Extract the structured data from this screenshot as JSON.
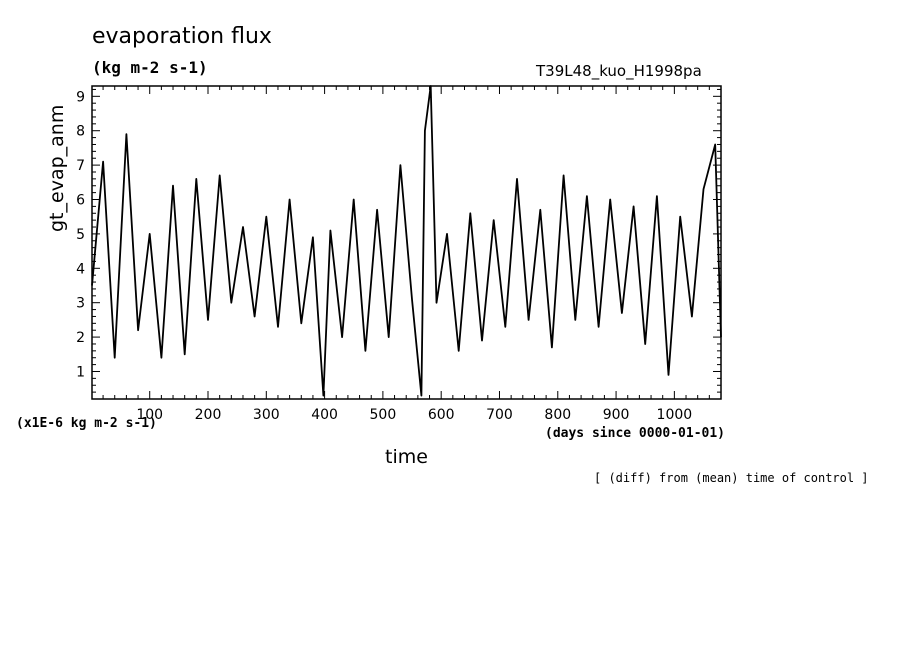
{
  "figure": {
    "title": "evaporation flux",
    "units": "(kg m-2 s-1)",
    "run_label": "T39L48_kuo_H1998pa",
    "scale_note": "(x1E-6 kg m-2 s-1)",
    "x_unit_note": "(days since 0000-01-01)",
    "footnote": "[ (diff) from (mean) time of control ]"
  },
  "chart_data": {
    "type": "line",
    "title": "evaporation flux",
    "xlabel": "time",
    "ylabel": "gt_evap_anm",
    "xlim": [
      1,
      1080
    ],
    "ylim": [
      0.2,
      9.3
    ],
    "xticks": [
      100,
      200,
      300,
      400,
      500,
      600,
      700,
      800,
      900,
      1000
    ],
    "yticks": [
      1,
      2,
      3,
      4,
      5,
      6,
      7,
      8,
      9
    ],
    "grid": false,
    "series": [
      {
        "x": [
          1,
          20,
          40,
          60,
          80,
          100,
          120,
          140,
          160,
          180,
          200,
          220,
          240,
          260,
          280,
          300,
          320,
          340,
          360,
          380,
          398,
          410,
          430,
          450,
          470,
          490,
          510,
          530,
          550,
          566,
          572,
          582,
          592,
          610,
          630,
          650,
          670,
          690,
          710,
          730,
          750,
          770,
          790,
          810,
          830,
          850,
          870,
          890,
          910,
          930,
          950,
          970,
          990,
          1010,
          1030,
          1050,
          1070,
          1080
        ],
        "y": [
          3.5,
          7.1,
          1.4,
          7.9,
          2.2,
          5.0,
          1.4,
          6.4,
          1.5,
          6.6,
          2.5,
          6.7,
          3.0,
          5.2,
          2.6,
          5.5,
          2.3,
          6.0,
          2.4,
          4.9,
          0.3,
          5.1,
          2.0,
          6.0,
          1.6,
          5.7,
          2.0,
          7.0,
          3.1,
          0.3,
          8.0,
          9.3,
          3.0,
          5.0,
          1.6,
          5.6,
          1.9,
          5.4,
          2.3,
          6.6,
          2.5,
          5.7,
          1.7,
          6.7,
          2.5,
          6.1,
          2.3,
          6.0,
          2.7,
          5.8,
          1.8,
          6.1,
          0.9,
          5.5,
          2.6,
          6.3,
          7.6,
          2.0
        ]
      }
    ]
  }
}
